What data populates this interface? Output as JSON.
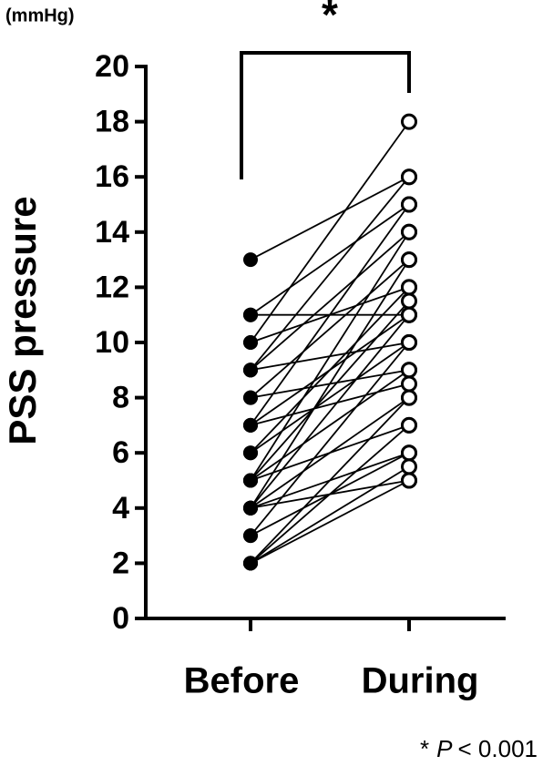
{
  "chart_data": {
    "type": "paired",
    "unit_label": "(mmHg)",
    "y_label": "PSS pressure",
    "categories": [
      "Before",
      "During"
    ],
    "values": [
      [
        13,
        16
      ],
      [
        11,
        11
      ],
      [
        11,
        15
      ],
      [
        10,
        18
      ],
      [
        10,
        12
      ],
      [
        9,
        14
      ],
      [
        9,
        10
      ],
      [
        9,
        16
      ],
      [
        8,
        13
      ],
      [
        8,
        9
      ],
      [
        7,
        15
      ],
      [
        7,
        11
      ],
      [
        7,
        8.5
      ],
      [
        6,
        12
      ],
      [
        6,
        10
      ],
      [
        5,
        14
      ],
      [
        5,
        11.5
      ],
      [
        5,
        9
      ],
      [
        5,
        7
      ],
      [
        4,
        13
      ],
      [
        4,
        11
      ],
      [
        4,
        8
      ],
      [
        4,
        6
      ],
      [
        4,
        5
      ],
      [
        3,
        10
      ],
      [
        3,
        6
      ],
      [
        2,
        8
      ],
      [
        2,
        7
      ],
      [
        2,
        5.5
      ],
      [
        2,
        5
      ]
    ],
    "color": "#000000",
    "ylim": [
      0,
      20
    ],
    "yticks": [
      0,
      2,
      4,
      6,
      8,
      10,
      12,
      14,
      16,
      18,
      20
    ],
    "significance": "*",
    "footnote": {
      "star": "*",
      "p": "P",
      "rest": "< 0.001"
    }
  }
}
